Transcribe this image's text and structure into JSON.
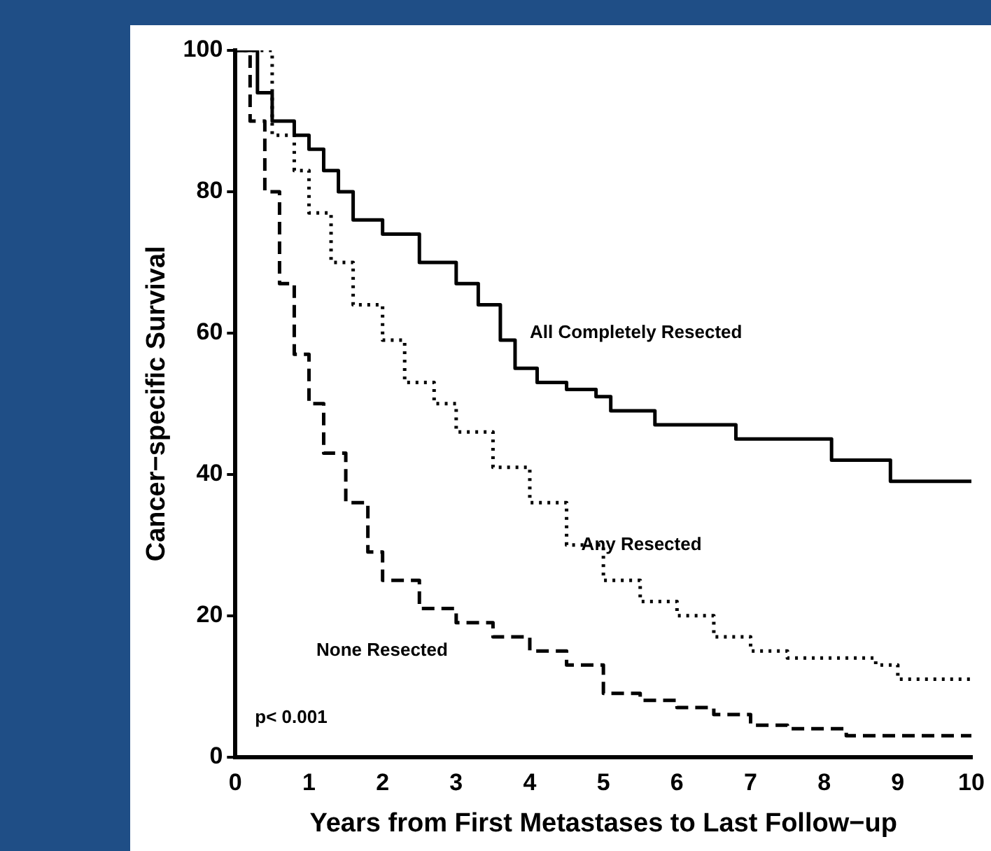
{
  "chart_data": {
    "type": "step",
    "xlabel": "Years from First Metastases to Last Follow−up",
    "ylabel": "Cancer−specific Survival",
    "xlim": [
      0,
      10
    ],
    "xticks": [
      0,
      1,
      2,
      3,
      4,
      5,
      6,
      7,
      8,
      9,
      10
    ],
    "ylim": [
      0,
      100
    ],
    "yticks": [
      0,
      20,
      40,
      60,
      80,
      100
    ],
    "grid": false,
    "legend": false,
    "series": [
      {
        "name": "All Completely Resected",
        "color": "#000000",
        "line_style": "solid",
        "x": [
          0,
          0.3,
          0.5,
          0.8,
          1.0,
          1.2,
          1.4,
          1.6,
          2.0,
          2.5,
          3.0,
          3.3,
          3.6,
          3.8,
          4.1,
          4.5,
          4.9,
          5.1,
          5.7,
          6.8,
          8.1,
          8.9,
          10
        ],
        "values": [
          100,
          94,
          90,
          88,
          86,
          83,
          80,
          76,
          74,
          70,
          67,
          64,
          59,
          55,
          53,
          52,
          51,
          49,
          47,
          45,
          42,
          39,
          39
        ]
      },
      {
        "name": "Any Resected",
        "color": "#000000",
        "line_style": "dotted",
        "x": [
          0,
          0.5,
          0.8,
          1.0,
          1.3,
          1.6,
          2.0,
          2.3,
          2.7,
          3.0,
          3.5,
          4.0,
          4.5,
          5.0,
          5.5,
          6.0,
          6.5,
          7.0,
          7.5,
          8.0,
          8.7,
          9.0,
          10
        ],
        "values": [
          100,
          88,
          83,
          77,
          70,
          64,
          59,
          53,
          50,
          46,
          41,
          36,
          30,
          25,
          22,
          20,
          17,
          15,
          14,
          14,
          13,
          11,
          11
        ]
      },
      {
        "name": "None Resected",
        "color": "#000000",
        "line_style": "dashed",
        "x": [
          0,
          0.2,
          0.4,
          0.6,
          0.8,
          1.0,
          1.2,
          1.5,
          1.8,
          2.0,
          2.5,
          3.0,
          3.5,
          4.0,
          4.5,
          5.0,
          5.5,
          6.0,
          6.5,
          7.0,
          7.5,
          8.0,
          8.3,
          10
        ],
        "values": [
          100,
          90,
          80,
          67,
          57,
          50,
          43,
          36,
          29,
          25,
          21,
          19,
          17,
          15,
          13,
          9,
          8,
          7,
          6,
          4.5,
          4,
          4,
          3,
          3
        ]
      }
    ],
    "annotations": [
      "p< 0.001"
    ]
  }
}
